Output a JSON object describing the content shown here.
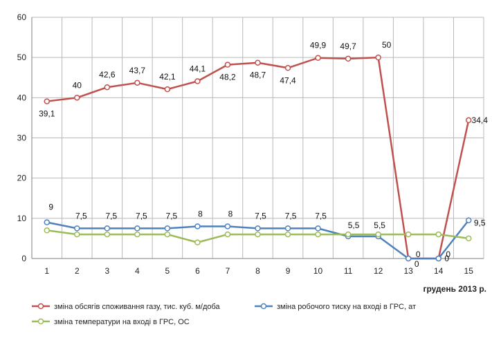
{
  "chart_data": {
    "type": "line",
    "title": "",
    "xlabel": "грудень 2013 р.",
    "ylabel": "",
    "x": [
      1,
      2,
      3,
      4,
      5,
      6,
      7,
      8,
      9,
      10,
      11,
      12,
      13,
      14,
      15
    ],
    "x_tick_labels": [
      "1",
      "2",
      "3",
      "4",
      "5",
      "6",
      "7",
      "8",
      "9",
      "10",
      "11",
      "12",
      "13",
      "14",
      "15"
    ],
    "ylim": [
      0,
      60
    ],
    "y_ticks": [
      0,
      10,
      20,
      30,
      40,
      50,
      60
    ],
    "y_tick_labels": [
      "0",
      "10",
      "20",
      "30",
      "40",
      "50",
      "60"
    ],
    "grid": true,
    "legend_position": "bottom",
    "series": [
      {
        "name": "зміна обсягів споживання газу, тис. куб. м/доба",
        "color": "#c0504d",
        "values": [
          39.1,
          40,
          42.6,
          43.7,
          42.1,
          44.1,
          48.2,
          48.7,
          47.4,
          49.9,
          49.7,
          50,
          0,
          0,
          34.4
        ],
        "labels": [
          "39,1",
          "40",
          "42,6",
          "43,7",
          "42,1",
          "44,1",
          "48,2",
          "48,7",
          "47,4",
          "49,9",
          "49,7",
          "50",
          "0",
          "0",
          "34,4"
        ]
      },
      {
        "name": "зміна робочого тиску на вході в ГРС, ат",
        "color": "#4f81bd",
        "values": [
          9,
          7.5,
          7.5,
          7.5,
          7.5,
          8,
          8,
          7.5,
          7.5,
          7.5,
          5.5,
          5.5,
          0,
          0,
          9.5
        ],
        "labels": [
          "9",
          "7,5",
          "7,5",
          "7,5",
          "7,5",
          "8",
          "8",
          "7,5",
          "7,5",
          "7,5",
          "5,5",
          "5,5",
          "0",
          "0",
          "9,5"
        ]
      },
      {
        "name": "зміна температури на вході в ГРС, ОС",
        "color": "#9bbb59",
        "values": [
          7,
          6,
          6,
          6,
          6,
          4,
          6,
          6,
          6,
          6,
          6,
          6,
          6,
          6,
          5
        ],
        "labels": []
      }
    ]
  }
}
